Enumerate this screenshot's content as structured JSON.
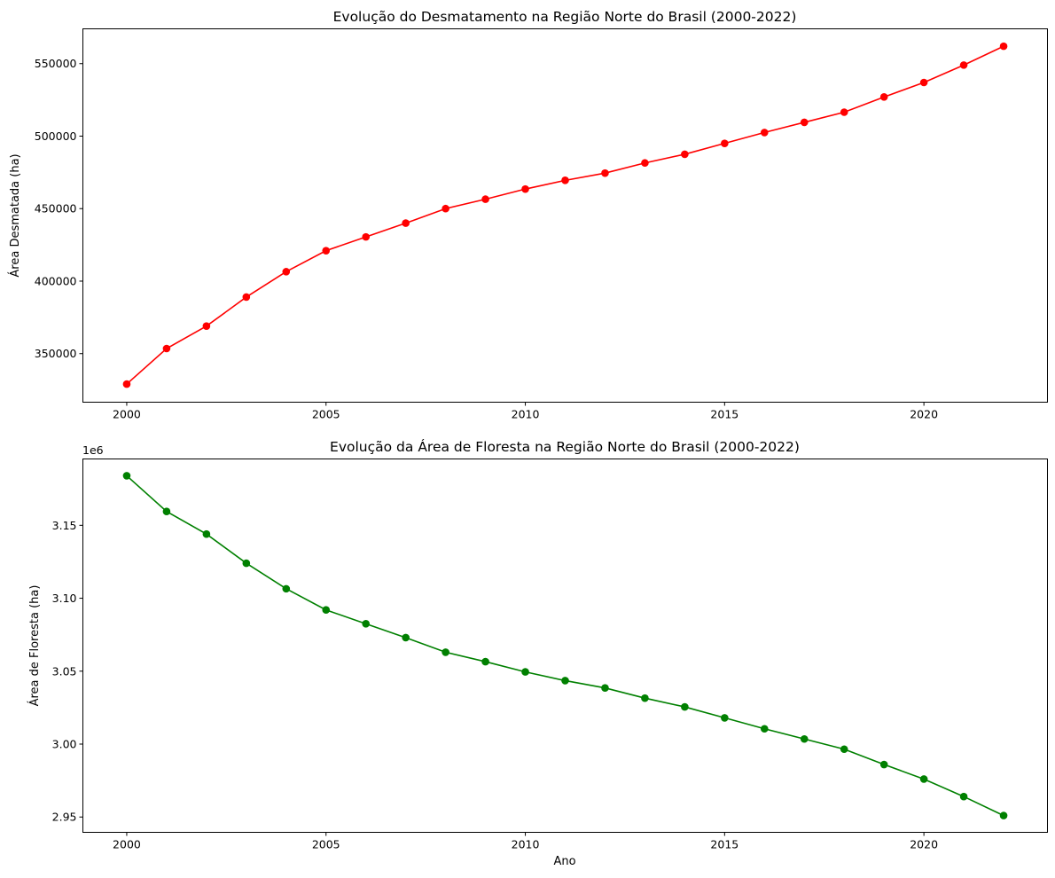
{
  "figure": {
    "background": "#ffffff"
  },
  "chart_data": [
    {
      "type": "line",
      "title": "Evolução do Desmatamento na Região Norte do Brasil (2000-2022)",
      "xlabel": "",
      "ylabel": "Área Desmatada (ha)",
      "x": [
        2000,
        2001,
        2002,
        2003,
        2004,
        2005,
        2006,
        2007,
        2008,
        2009,
        2010,
        2011,
        2012,
        2013,
        2014,
        2015,
        2016,
        2017,
        2018,
        2019,
        2020,
        2021,
        2022
      ],
      "series": [
        {
          "color": "#ff0000",
          "marker": "circle",
          "values": [
            329000,
            353500,
            369000,
            389000,
            406500,
            421000,
            430500,
            440000,
            450000,
            456500,
            463500,
            469500,
            474500,
            481500,
            487500,
            495000,
            502500,
            509500,
            516500,
            527000,
            537000,
            549000,
            562000
          ]
        }
      ],
      "xlim": [
        1998.9,
        2023.1
      ],
      "ylim": [
        316500,
        574000
      ],
      "xticks": [
        2000,
        2005,
        2010,
        2015,
        2020
      ],
      "xticklabels": [
        "2000",
        "2005",
        "2010",
        "2015",
        "2020"
      ],
      "yticks": [
        350000,
        400000,
        450000,
        500000,
        550000
      ],
      "yticklabels": [
        "350000",
        "400000",
        "450000",
        "500000",
        "550000"
      ],
      "offset_text": "",
      "grid": false,
      "legend": "none"
    },
    {
      "type": "line",
      "title": "Evolução da Área de Floresta na Região Norte do Brasil (2000-2022)",
      "xlabel": "Ano",
      "ylabel": "Área de Floresta (ha)",
      "x": [
        2000,
        2001,
        2002,
        2003,
        2004,
        2005,
        2006,
        2007,
        2008,
        2009,
        2010,
        2011,
        2012,
        2013,
        2014,
        2015,
        2016,
        2017,
        2018,
        2019,
        2020,
        2021,
        2022
      ],
      "series": [
        {
          "color": "#008000",
          "marker": "circle",
          "values": [
            3184000,
            3159500,
            3144000,
            3124000,
            3106500,
            3092000,
            3082500,
            3073000,
            3063000,
            3056500,
            3049500,
            3043500,
            3038500,
            3031500,
            3025500,
            3018000,
            3010500,
            3003500,
            2996500,
            2986000,
            2976000,
            2964000,
            2951000
          ]
        }
      ],
      "xlim": [
        1998.9,
        2023.1
      ],
      "ylim": [
        2939500,
        3195500
      ],
      "xticks": [
        2000,
        2005,
        2010,
        2015,
        2020
      ],
      "xticklabels": [
        "2000",
        "2005",
        "2010",
        "2015",
        "2020"
      ],
      "yticks": [
        2950000,
        3000000,
        3050000,
        3100000,
        3150000
      ],
      "yticklabels": [
        "2.95",
        "3.00",
        "3.05",
        "3.10",
        "3.15"
      ],
      "offset_text": "1e6",
      "grid": false,
      "legend": "none"
    }
  ]
}
